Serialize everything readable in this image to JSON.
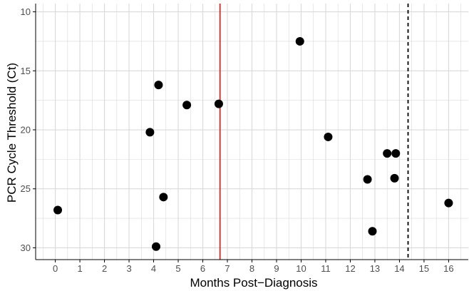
{
  "chart_data": {
    "type": "scatter",
    "xlabel": "Months Post−Diagnosis",
    "ylabel": "PCR Cycle Threshold (Ct)",
    "xlim": [
      -0.8,
      16.8
    ],
    "ylim": [
      31.0,
      9.3
    ],
    "y_reversed": true,
    "grid": true,
    "x_ticks": [
      0,
      1,
      2,
      3,
      4,
      5,
      6,
      7,
      8,
      9,
      10,
      11,
      12,
      13,
      14,
      15,
      16
    ],
    "x_tick_labels": [
      "0",
      "1",
      "2",
      "3",
      "4",
      "5",
      "6",
      "7",
      "8",
      "9",
      "10",
      "11",
      "12",
      "13",
      "14",
      "15",
      "16"
    ],
    "y_ticks": [
      10,
      15,
      20,
      25,
      30
    ],
    "y_tick_labels": [
      "10",
      "15",
      "20",
      "25",
      "30"
    ],
    "x": [
      0.1,
      3.85,
      4.1,
      4.2,
      4.4,
      5.35,
      6.65,
      9.95,
      11.1,
      12.7,
      12.9,
      13.5,
      13.8,
      13.85,
      16.0
    ],
    "y": [
      26.8,
      20.2,
      29.9,
      16.2,
      25.7,
      17.9,
      17.8,
      12.5,
      20.6,
      24.2,
      28.6,
      22.0,
      24.1,
      22.0,
      26.2
    ],
    "vlines": [
      {
        "x": 6.7,
        "color": "#cc2a2a",
        "style": "solid"
      },
      {
        "x": 14.35,
        "color": "#000000",
        "style": "dashed"
      }
    ],
    "colors": {
      "points": "#000000",
      "grid": "#d9d9d9",
      "axis": "#000000"
    }
  }
}
